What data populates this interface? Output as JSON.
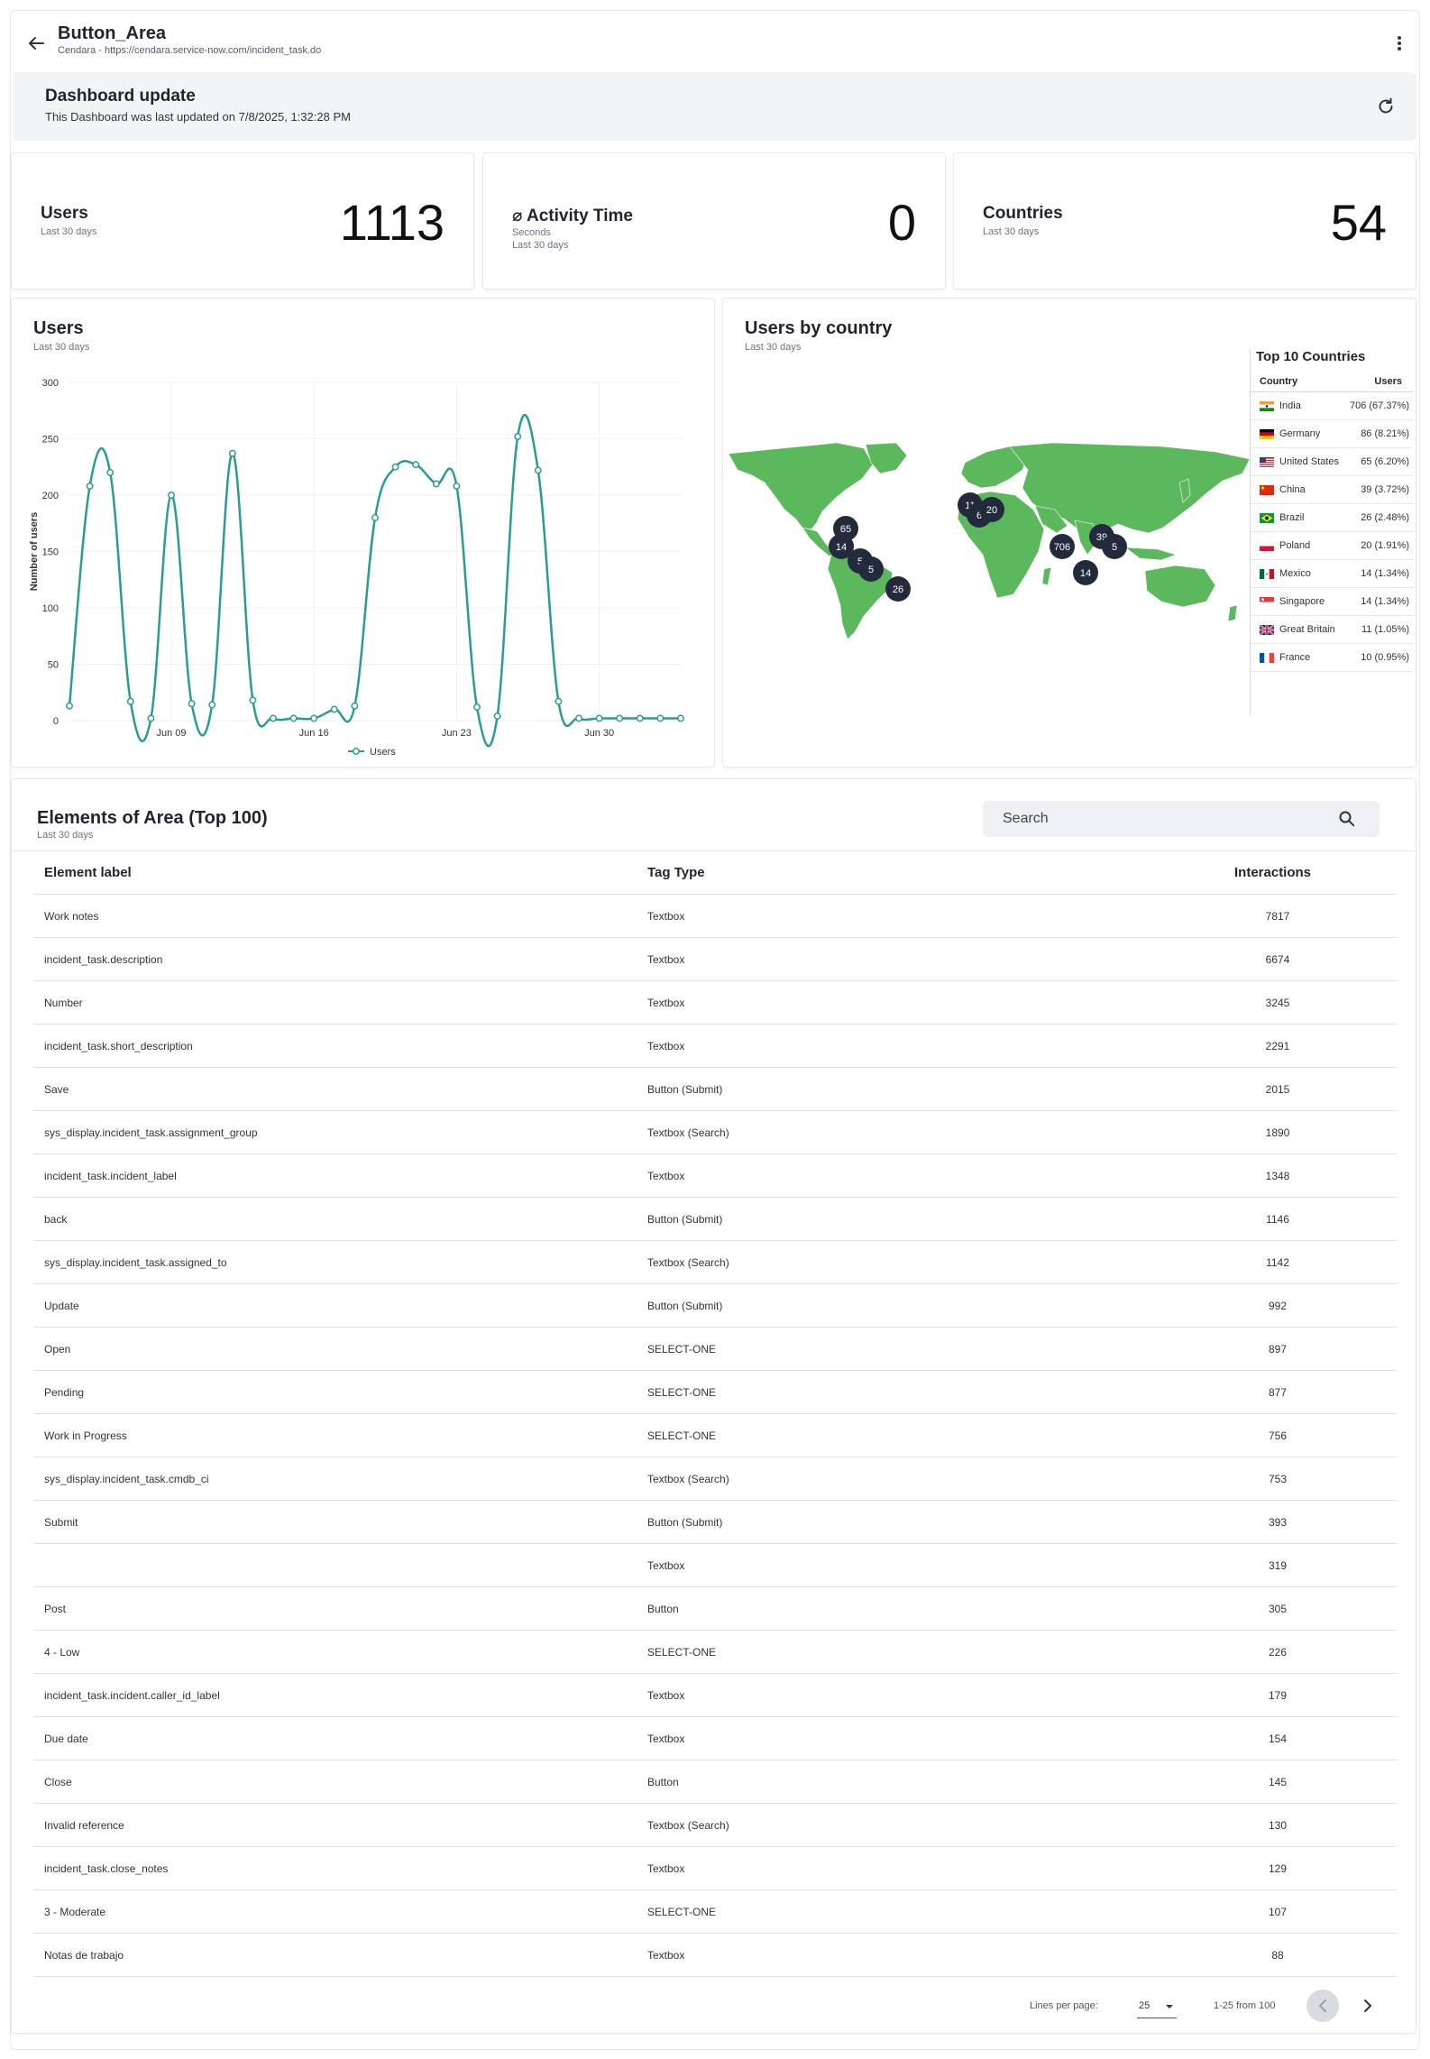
{
  "header": {
    "title": "Button_Area",
    "subtitle": "Cendara - https://cendara.service-now.com/incident_task.do"
  },
  "update": {
    "title": "Dashboard update",
    "text": "This Dashboard was last updated on 7/8/2025, 1:32:28 PM"
  },
  "kpis": {
    "users": {
      "title": "Users",
      "sub": "Last 30 days",
      "value": "1113"
    },
    "activity": {
      "title": "⌀ Activity Time",
      "sub1": "Seconds",
      "sub2": "Last 30 days",
      "value": "0"
    },
    "countries": {
      "title": "Countries",
      "sub": "Last 30 days",
      "value": "54"
    }
  },
  "users_chart": {
    "title": "Users",
    "sub": "Last 30 days"
  },
  "chart_data": {
    "type": "line",
    "ylabel": "Number of users",
    "ylim": [
      0,
      300
    ],
    "yticks": [
      0,
      50,
      100,
      150,
      200,
      250,
      300
    ],
    "xtick_labels": [
      "Jun 09",
      "Jun 16",
      "Jun 23",
      "Jun 30"
    ],
    "xtick_index": [
      5,
      12,
      19,
      26
    ],
    "grid": true,
    "legend": "bottom",
    "series": [
      {
        "name": "Users",
        "color": "#2a9d8f",
        "values": [
          13,
          208,
          220,
          17,
          2,
          200,
          15,
          14,
          237,
          18,
          2,
          2,
          2,
          10,
          13,
          180,
          225,
          227,
          210,
          208,
          12,
          4,
          252,
          222,
          17,
          2,
          2,
          2,
          2,
          2,
          2
        ]
      }
    ]
  },
  "map_panel": {
    "title": "Users by country",
    "sub": "Last 30 days",
    "land_color": "#5cb85c",
    "clusters": [
      "11",
      "6",
      "20",
      "65",
      "14",
      "5",
      "5",
      "26",
      "706",
      "39",
      "5",
      "14"
    ]
  },
  "top10": {
    "title": "Top 10 Countries",
    "col_country": "Country",
    "col_users": "Users",
    "rows": [
      {
        "country": "India",
        "users": "706 (67.37%)",
        "flag": "india"
      },
      {
        "country": "Germany",
        "users": "86 (8.21%)",
        "flag": "germany"
      },
      {
        "country": "United States",
        "users": "65 (6.20%)",
        "flag": "usa"
      },
      {
        "country": "China",
        "users": "39 (3.72%)",
        "flag": "china"
      },
      {
        "country": "Brazil",
        "users": "26 (2.48%)",
        "flag": "brazil"
      },
      {
        "country": "Poland",
        "users": "20 (1.91%)",
        "flag": "poland"
      },
      {
        "country": "Mexico",
        "users": "14 (1.34%)",
        "flag": "mexico"
      },
      {
        "country": "Singapore",
        "users": "14 (1.34%)",
        "flag": "singapore"
      },
      {
        "country": "Great Britain",
        "users": "11 (1.05%)",
        "flag": "gb"
      },
      {
        "country": "France",
        "users": "10 (0.95%)",
        "flag": "france"
      }
    ]
  },
  "elements": {
    "title": "Elements of Area (Top 100)",
    "sub": "Last 30 days",
    "search_placeholder": "Search",
    "columns": [
      "Element label",
      "Tag Type",
      "Interactions"
    ],
    "rows": [
      [
        "Work notes",
        "Textbox",
        "7817"
      ],
      [
        "incident_task.description",
        "Textbox",
        "6674"
      ],
      [
        "Number",
        "Textbox",
        "3245"
      ],
      [
        "incident_task.short_description",
        "Textbox",
        "2291"
      ],
      [
        "Save",
        "Button (Submit)",
        "2015"
      ],
      [
        "sys_display.incident_task.assignment_group",
        "Textbox (Search)",
        "1890"
      ],
      [
        "incident_task.incident_label",
        "Textbox",
        "1348"
      ],
      [
        "back",
        "Button (Submit)",
        "1146"
      ],
      [
        "sys_display.incident_task.assigned_to",
        "Textbox (Search)",
        "1142"
      ],
      [
        "Update",
        "Button (Submit)",
        "992"
      ],
      [
        "Open",
        "SELECT-ONE",
        "897"
      ],
      [
        "Pending",
        "SELECT-ONE",
        "877"
      ],
      [
        "Work in Progress",
        "SELECT-ONE",
        "756"
      ],
      [
        "sys_display.incident_task.cmdb_ci",
        "Textbox (Search)",
        "753"
      ],
      [
        "Submit",
        "Button (Submit)",
        "393"
      ],
      [
        "",
        "Textbox",
        "319"
      ],
      [
        "Post",
        "Button",
        "305"
      ],
      [
        "4 - Low",
        "SELECT-ONE",
        "226"
      ],
      [
        "incident_task.incident.caller_id_label",
        "Textbox",
        "179"
      ],
      [
        "Due date",
        "Textbox",
        "154"
      ],
      [
        "Close",
        "Button",
        "145"
      ],
      [
        "Invalid reference",
        "Textbox (Search)",
        "130"
      ],
      [
        "incident_task.close_notes",
        "Textbox",
        "129"
      ],
      [
        "3 - Moderate",
        "SELECT-ONE",
        "107"
      ],
      [
        "Notas de trabajo",
        "Textbox",
        "88"
      ]
    ],
    "pager": {
      "lines_label": "Lines per page:",
      "lines_value": "25",
      "range": "1-25 from 100"
    }
  }
}
